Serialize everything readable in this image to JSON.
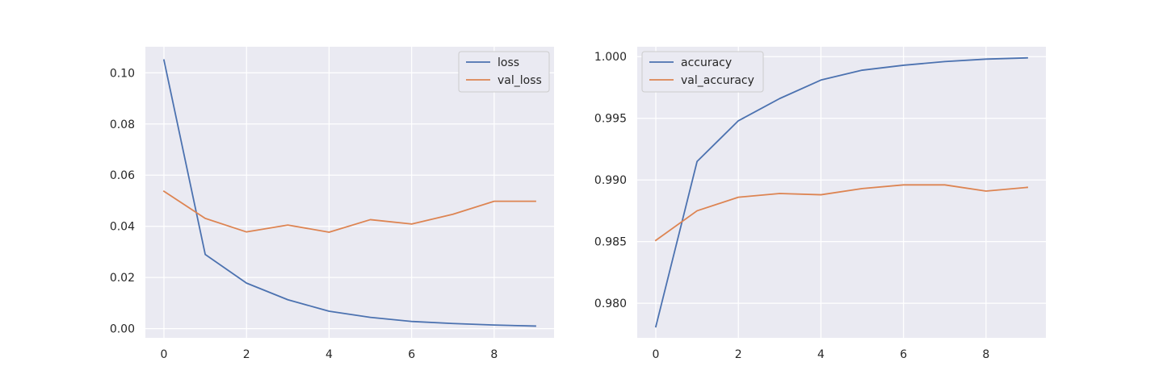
{
  "colors": {
    "series_1": "#4c72b0",
    "series_2": "#dd8452",
    "plot_background": "#eaeaf2",
    "grid": "#ffffff"
  },
  "chart_data": [
    {
      "type": "line",
      "title": "",
      "xlabel": "",
      "ylabel": "",
      "x": [
        0,
        1,
        2,
        3,
        4,
        5,
        6,
        7,
        8,
        9
      ],
      "xlim": [
        -0.45,
        9.45
      ],
      "ylim": [
        -0.0036,
        0.1102
      ],
      "xticks": [
        0,
        2,
        4,
        6,
        8
      ],
      "xtick_labels": [
        "0",
        "2",
        "4",
        "6",
        "8"
      ],
      "yticks": [
        0.0,
        0.02,
        0.04,
        0.06,
        0.08,
        0.1
      ],
      "ytick_labels": [
        "0.00",
        "0.02",
        "0.04",
        "0.06",
        "0.08",
        "0.10"
      ],
      "grid": true,
      "legend_position": "upper right",
      "series": [
        {
          "name": "loss",
          "values": [
            0.105,
            0.029,
            0.0178,
            0.0113,
            0.0068,
            0.0044,
            0.0028,
            0.002,
            0.0014,
            0.001
          ]
        },
        {
          "name": "val_loss",
          "values": [
            0.0537,
            0.0431,
            0.0378,
            0.0405,
            0.0377,
            0.0426,
            0.0409,
            0.0447,
            0.0498,
            0.0498
          ]
        }
      ]
    },
    {
      "type": "line",
      "title": "",
      "xlabel": "",
      "ylabel": "",
      "x": [
        0,
        1,
        2,
        3,
        4,
        5,
        6,
        7,
        8,
        9
      ],
      "xlim": [
        -0.45,
        9.45
      ],
      "ylim": [
        0.9772,
        1.0008
      ],
      "xticks": [
        0,
        2,
        4,
        6,
        8
      ],
      "xtick_labels": [
        "0",
        "2",
        "4",
        "6",
        "8"
      ],
      "yticks": [
        0.98,
        0.985,
        0.99,
        0.995,
        1.0
      ],
      "ytick_labels": [
        "0.980",
        "0.985",
        "0.990",
        "0.995",
        "1.000"
      ],
      "grid": true,
      "legend_position": "upper left",
      "series": [
        {
          "name": "accuracy",
          "values": [
            0.9781,
            0.9915,
            0.9948,
            0.9966,
            0.9981,
            0.9989,
            0.9993,
            0.9996,
            0.9998,
            0.9999
          ]
        },
        {
          "name": "val_accuracy",
          "values": [
            0.9851,
            0.9875,
            0.9886,
            0.9889,
            0.9888,
            0.9893,
            0.9896,
            0.9896,
            0.9891,
            0.9894
          ]
        }
      ]
    }
  ]
}
